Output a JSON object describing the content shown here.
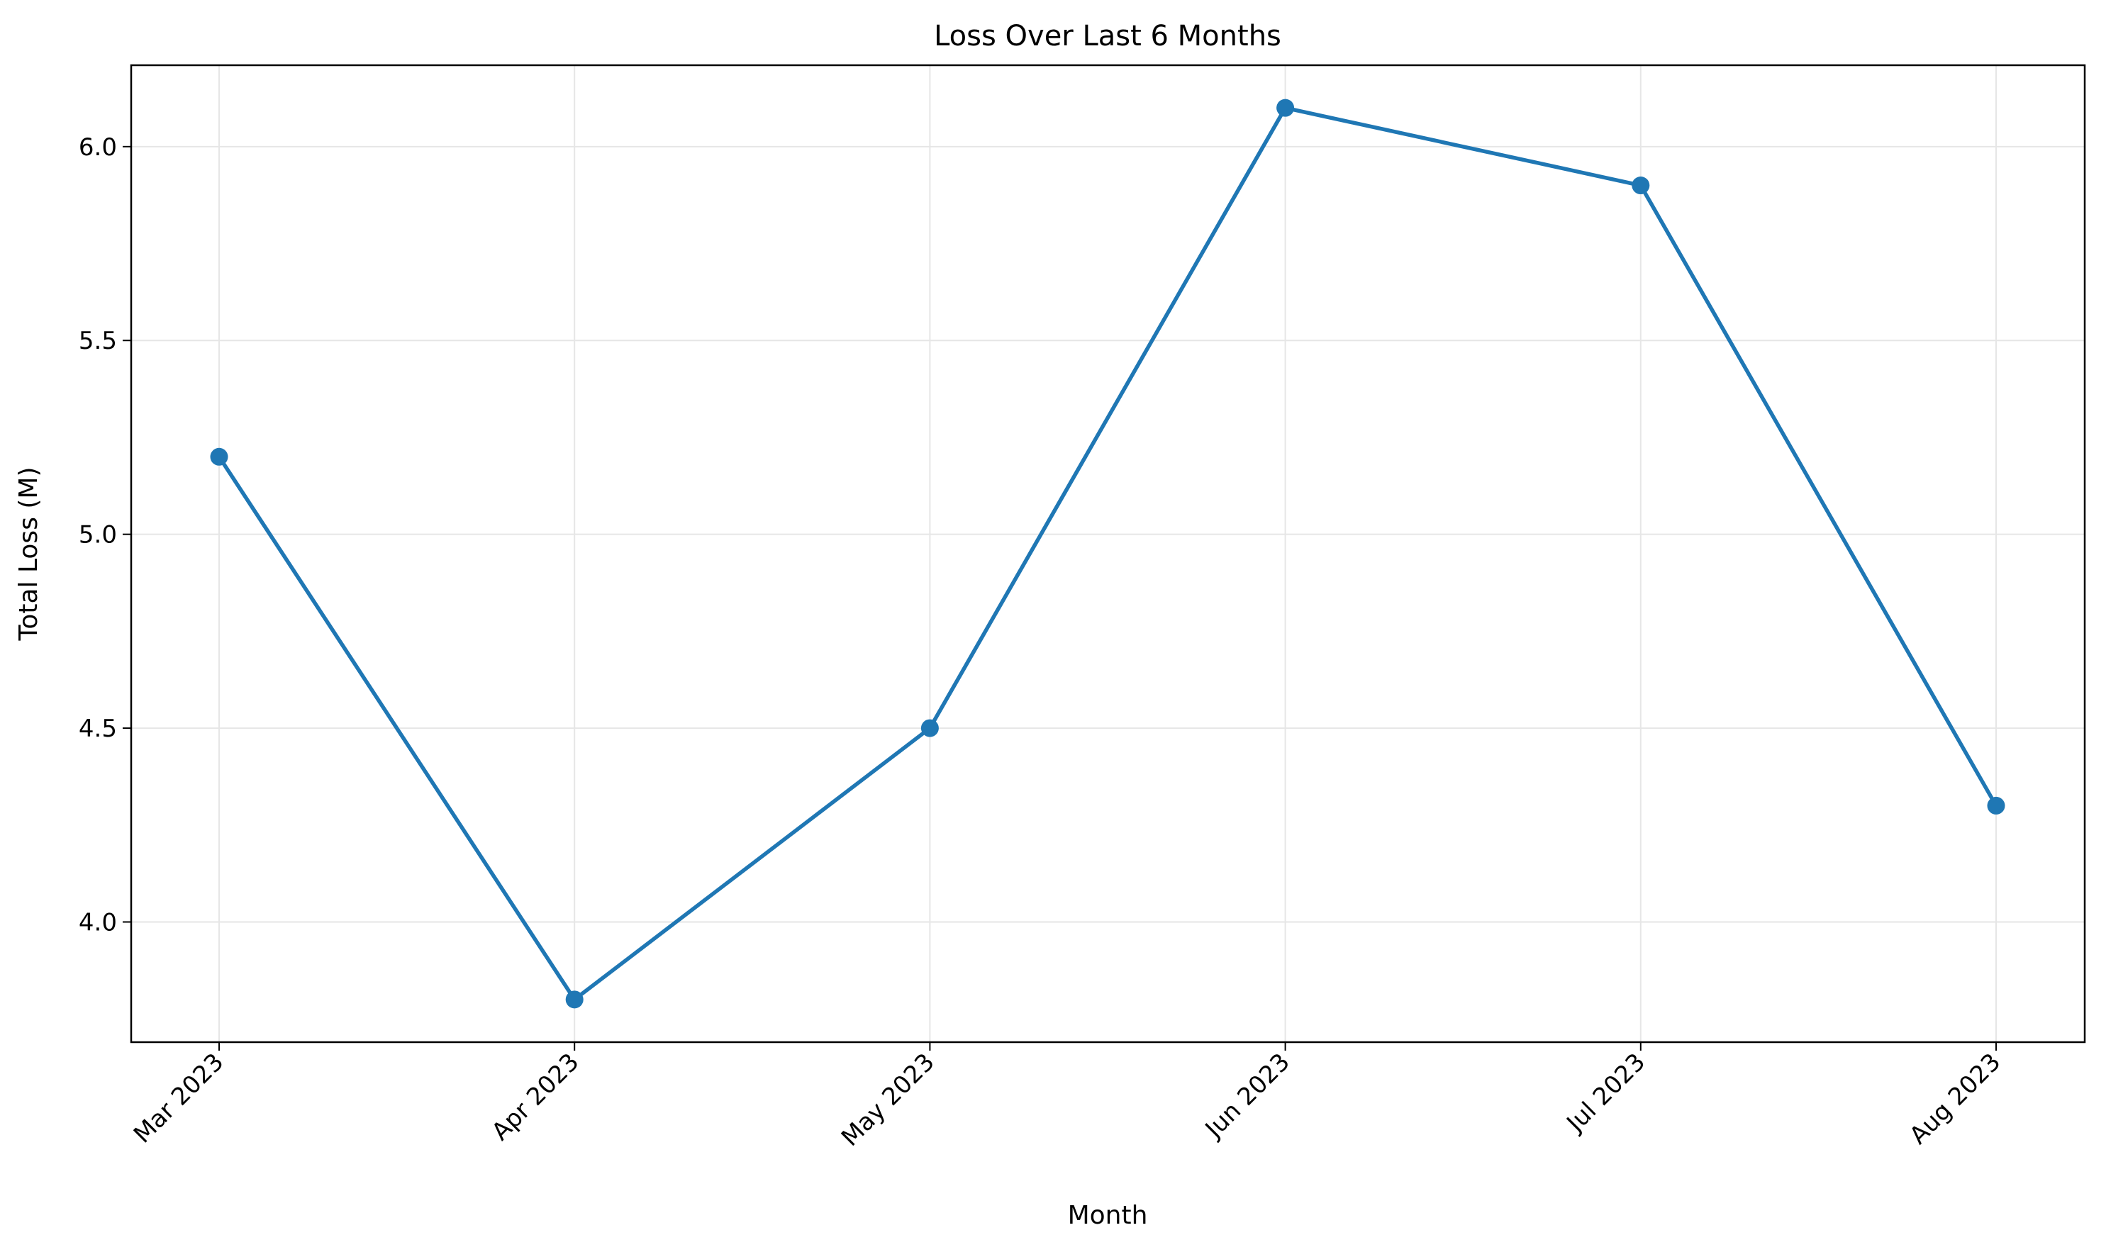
{
  "chart_data": {
    "type": "line",
    "title": "Loss Over Last 6 Months",
    "xlabel": "Month",
    "ylabel": "Total Loss (M)",
    "categories": [
      "Mar 2023",
      "Apr 2023",
      "May 2023",
      "Jun 2023",
      "Jul 2023",
      "Aug 2023"
    ],
    "series": [
      {
        "values": [
          5.2,
          3.8,
          4.5,
          6.1,
          5.9,
          4.3
        ],
        "color": "#1f77b4",
        "marker": "circle"
      }
    ],
    "ylim": [
      3.69,
      6.21
    ],
    "yticks": [
      4.0,
      4.5,
      5.0,
      5.5,
      6.0
    ],
    "ytick_labels": [
      "4.0",
      "4.5",
      "5.0",
      "5.5",
      "6.0"
    ],
    "grid": true,
    "grid_color": "#e6e6e6",
    "axis_color": "#000000",
    "legend": "none"
  }
}
